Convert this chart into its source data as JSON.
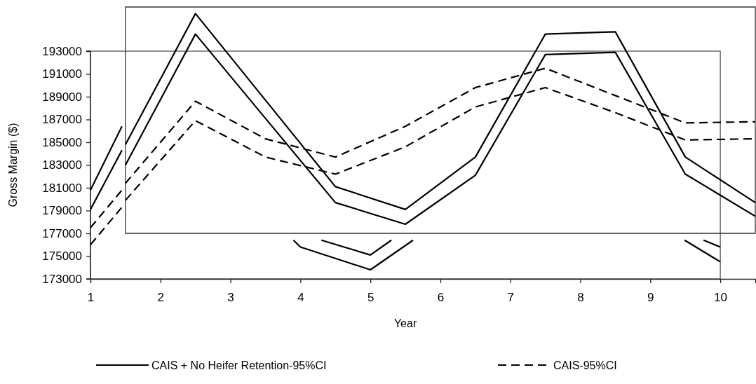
{
  "chart_data": {
    "type": "line",
    "xlabel": "Year",
    "ylabel": "Gross Margin ($)",
    "xlim": [
      1,
      10.5
    ],
    "xticks": [
      1,
      2,
      3,
      4,
      5,
      6,
      7,
      8,
      9,
      10
    ],
    "ylim": [
      173000,
      197000
    ],
    "yticks": [
      173000,
      175000,
      177000,
      179000,
      181000,
      183000,
      185000,
      187000,
      189000,
      191000,
      193000
    ],
    "grid": false,
    "legend": "bottom",
    "series": [
      {
        "name": "CAIS + No Heifer Retention-95%CI",
        "color": "#000000",
        "line_style": "solid",
        "x": [
          1,
          1.45,
          2,
          3.9,
          4,
          5,
          5.61,
          7,
          9.49,
          10
        ],
        "values": [
          179100,
          184300,
          null,
          176400,
          175800,
          173800,
          176400,
          null,
          176400,
          174500
        ]
      },
      {
        "color": "#000000",
        "line_style": "solid",
        "x": [
          1,
          1.45,
          2,
          4.3,
          5,
          5.3,
          7,
          9.76,
          10
        ],
        "values": [
          180800,
          186400,
          null,
          176400,
          175100,
          176400,
          null,
          176400,
          175800
        ]
      },
      {
        "name": "CAIS-95%CI",
        "color": "#000000",
        "line_style": "dashed",
        "x": [
          1,
          1.45
        ],
        "values": [
          176000,
          179300
        ]
      },
      {
        "color": "#000000",
        "line_style": "dashed",
        "x": [
          1,
          1.45
        ],
        "values": [
          177500,
          180800
        ]
      },
      {
        "color": "#000000",
        "line_style": "solid",
        "x": [
          1.5,
          2.5,
          3.5,
          4.5,
          5.5,
          6.5,
          7.5,
          8.5,
          9.5,
          10.5
        ],
        "values": [
          183000,
          194500,
          187100,
          179700,
          177800,
          182100,
          192700,
          192900,
          182200,
          178500
        ]
      },
      {
        "color": "#000000",
        "line_style": "solid",
        "x": [
          1.5,
          2.5,
          3.5,
          4.5,
          5.5,
          6.5,
          7.5,
          8.5,
          9.5,
          10.5
        ],
        "values": [
          184800,
          196300,
          188700,
          181100,
          179100,
          183700,
          194500,
          194700,
          183700,
          179700
        ]
      },
      {
        "color": "#000000",
        "line_style": "dashed",
        "x": [
          1.5,
          2.5,
          3.5,
          4.5,
          5.5,
          6.5,
          7.5,
          8.5,
          9.5,
          10.5
        ],
        "values": [
          179900,
          186900,
          183700,
          182200,
          184600,
          188100,
          189800,
          187600,
          185200,
          185300
        ]
      },
      {
        "color": "#000000",
        "line_style": "dashed",
        "x": [
          1.5,
          2.5,
          3.5,
          4.5,
          5.5,
          6.5,
          7.5,
          8.5,
          9.5,
          10.5
        ],
        "values": [
          181400,
          188600,
          185300,
          183700,
          186400,
          189800,
          191500,
          189100,
          186700,
          186800
        ]
      }
    ]
  }
}
